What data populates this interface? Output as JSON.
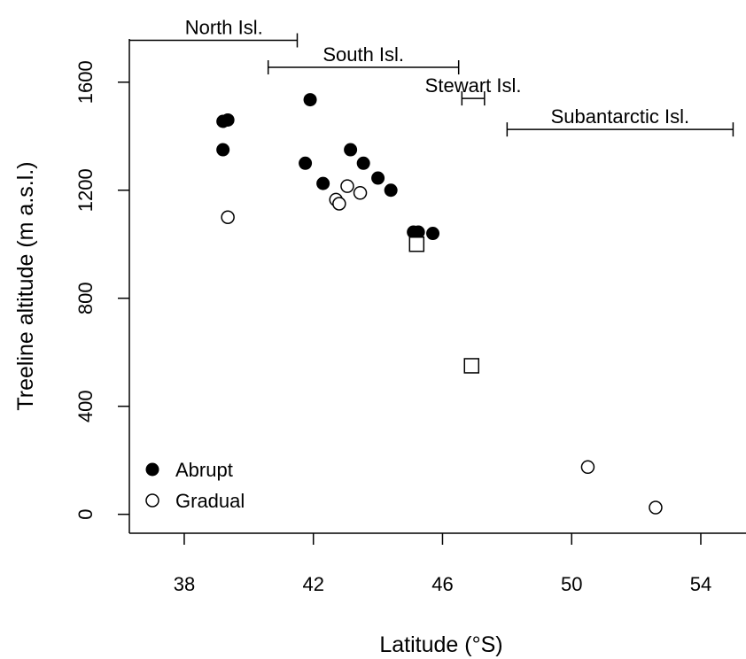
{
  "chart_data": {
    "type": "scatter",
    "title": "",
    "xlabel": "Latitude (°S)",
    "ylabel": "Treeline altitude (m a.s.l.)",
    "xlim": [
      36.3,
      55.4
    ],
    "ylim": [
      -70,
      1760
    ],
    "x_ticks": [
      38,
      42,
      46,
      50,
      54
    ],
    "y_ticks": [
      0,
      400,
      800,
      1200,
      1600
    ],
    "grid": false,
    "legend_position": "bottom-left",
    "series": [
      {
        "name": "Abrupt",
        "marker": "filled-circle",
        "color": "#000000",
        "points": [
          [
            39.2,
            1455
          ],
          [
            39.35,
            1460
          ],
          [
            39.2,
            1350
          ],
          [
            41.9,
            1535
          ],
          [
            41.75,
            1300
          ],
          [
            42.3,
            1225
          ],
          [
            43.15,
            1350
          ],
          [
            43.55,
            1300
          ],
          [
            44.0,
            1245
          ],
          [
            44.4,
            1200
          ],
          [
            45.1,
            1045
          ],
          [
            45.25,
            1045
          ],
          [
            45.7,
            1040
          ]
        ]
      },
      {
        "name": "Gradual",
        "marker": "open-circle",
        "color": "#000000",
        "points": [
          [
            39.35,
            1100
          ],
          [
            42.7,
            1165
          ],
          [
            42.8,
            1150
          ],
          [
            43.05,
            1215
          ],
          [
            43.45,
            1190
          ],
          [
            50.5,
            175
          ],
          [
            52.6,
            25
          ]
        ]
      },
      {
        "name": "",
        "marker": "open-square",
        "color": "#000000",
        "points": [
          [
            45.2,
            1000
          ],
          [
            46.9,
            550
          ]
        ]
      }
    ],
    "range_annotations": [
      {
        "label": "North Isl.",
        "x_start": 36.3,
        "x_end": 41.5,
        "y": 1755
      },
      {
        "label": "South Isl.",
        "x_start": 40.6,
        "x_end": 46.5,
        "y": 1655
      },
      {
        "label": "Stewart Isl.",
        "x_start": 46.6,
        "x_end": 47.3,
        "y": 1540
      },
      {
        "label": "Subantarctic Isl.",
        "x_start": 48.0,
        "x_end": 55.0,
        "y": 1425
      }
    ]
  }
}
